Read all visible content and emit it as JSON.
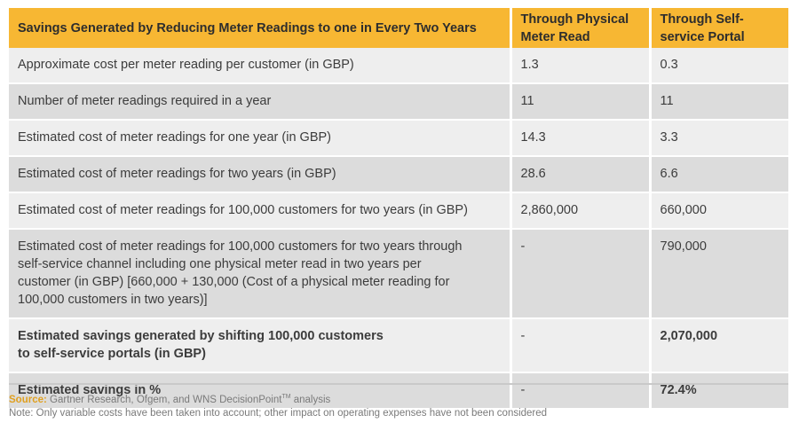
{
  "table": {
    "headers": [
      "Savings Generated by Reducing Meter Readings to one in Every Two Years",
      "Through Physical Meter Read",
      "Through Self-service Portal"
    ],
    "rows": [
      {
        "label": "Approximate cost per meter reading per customer (in GBP)",
        "physical": "1.3",
        "portal": "0.3"
      },
      {
        "label": "Number of meter readings required in a year",
        "physical": "11",
        "portal": "11"
      },
      {
        "label": "Estimated cost of meter readings for one year (in GBP)",
        "physical": "14.3",
        "portal": "3.3"
      },
      {
        "label": "Estimated cost of meter readings for two years (in GBP)",
        "physical": "28.6",
        "portal": "6.6"
      },
      {
        "label": "Estimated cost of meter readings for 100,000 customers for two years (in GBP)",
        "physical": "2,860,000",
        "portal": "660,000"
      },
      {
        "label": "Estimated cost of meter readings for 100,000 customers for two years through self-service channel including one physical meter read in two years per customer (in GBP) [660,000 + 130,000 (Cost of a physical meter reading for 100,000 customers in two years)]",
        "physical": "-",
        "portal": "790,000"
      },
      {
        "label": "Estimated savings generated by shifting 100,000 customers to self-service portals (in GBP)",
        "physical": "-",
        "portal": "2,070,000"
      },
      {
        "label": "Estimated savings in %",
        "physical": "-",
        "portal": "72.4%"
      }
    ]
  },
  "footer": {
    "source_label": "Source:",
    "source_text": " Gartner Research, Ofgem, and WNS DecisionPoint",
    "trademark": "TM",
    "source_suffix": " analysis",
    "note": "Note: Only variable costs have been taken into account; other impact on operating expenses have not been considered"
  }
}
